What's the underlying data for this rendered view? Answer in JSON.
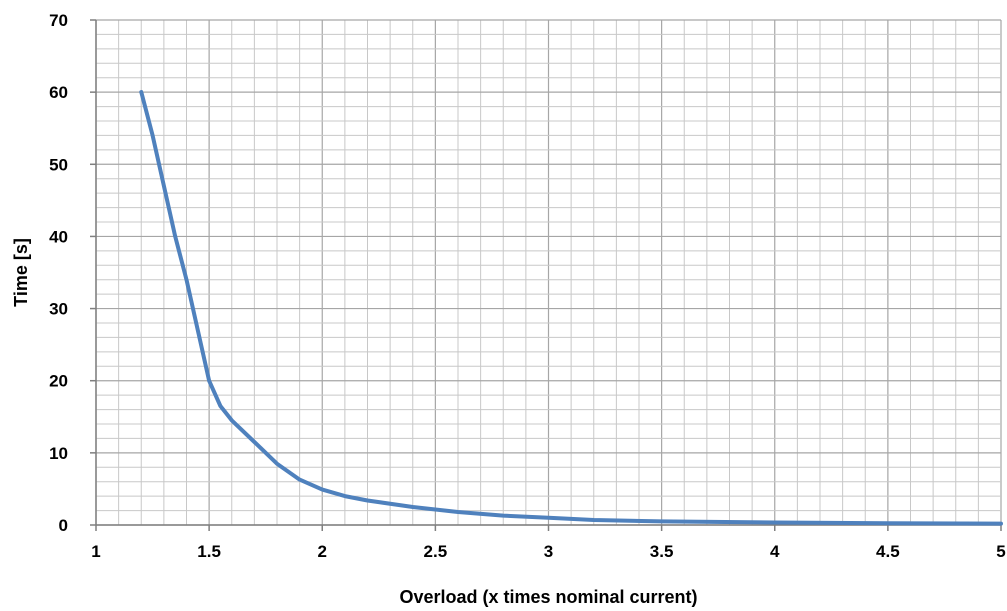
{
  "chart_data": {
    "type": "line",
    "title": "",
    "xlabel": "Overload (x times nominal current)",
    "ylabel": "Time [s]",
    "xlim": [
      1,
      5
    ],
    "ylim": [
      0,
      70
    ],
    "x_ticks": [
      1,
      1.5,
      2,
      2.5,
      3,
      3.5,
      4,
      4.5,
      5
    ],
    "x_tick_labels": [
      "1",
      "1.5",
      "2",
      "2.5",
      "3",
      "3.5",
      "4",
      "4.5",
      "5"
    ],
    "y_ticks": [
      0,
      10,
      20,
      30,
      40,
      50,
      60,
      70
    ],
    "y_tick_labels": [
      "0",
      "10",
      "20",
      "30",
      "40",
      "50",
      "60",
      "70"
    ],
    "x_minor_step": 0.1,
    "y_minor_step": 2,
    "grid": true,
    "legend": "none",
    "series": [
      {
        "color": "#4f81bd",
        "x": [
          1.2,
          1.25,
          1.3,
          1.35,
          1.4,
          1.45,
          1.5,
          1.55,
          1.6,
          1.7,
          1.8,
          1.9,
          2.0,
          2.1,
          2.2,
          2.4,
          2.6,
          2.8,
          3.0,
          3.2,
          3.5,
          4.0,
          4.5,
          5.0
        ],
        "y": [
          60,
          54,
          47,
          40,
          34,
          27,
          20,
          16.5,
          14.5,
          11.5,
          8.5,
          6.3,
          4.9,
          4.0,
          3.4,
          2.5,
          1.8,
          1.3,
          1.0,
          0.7,
          0.5,
          0.35,
          0.25,
          0.2
        ]
      }
    ]
  }
}
